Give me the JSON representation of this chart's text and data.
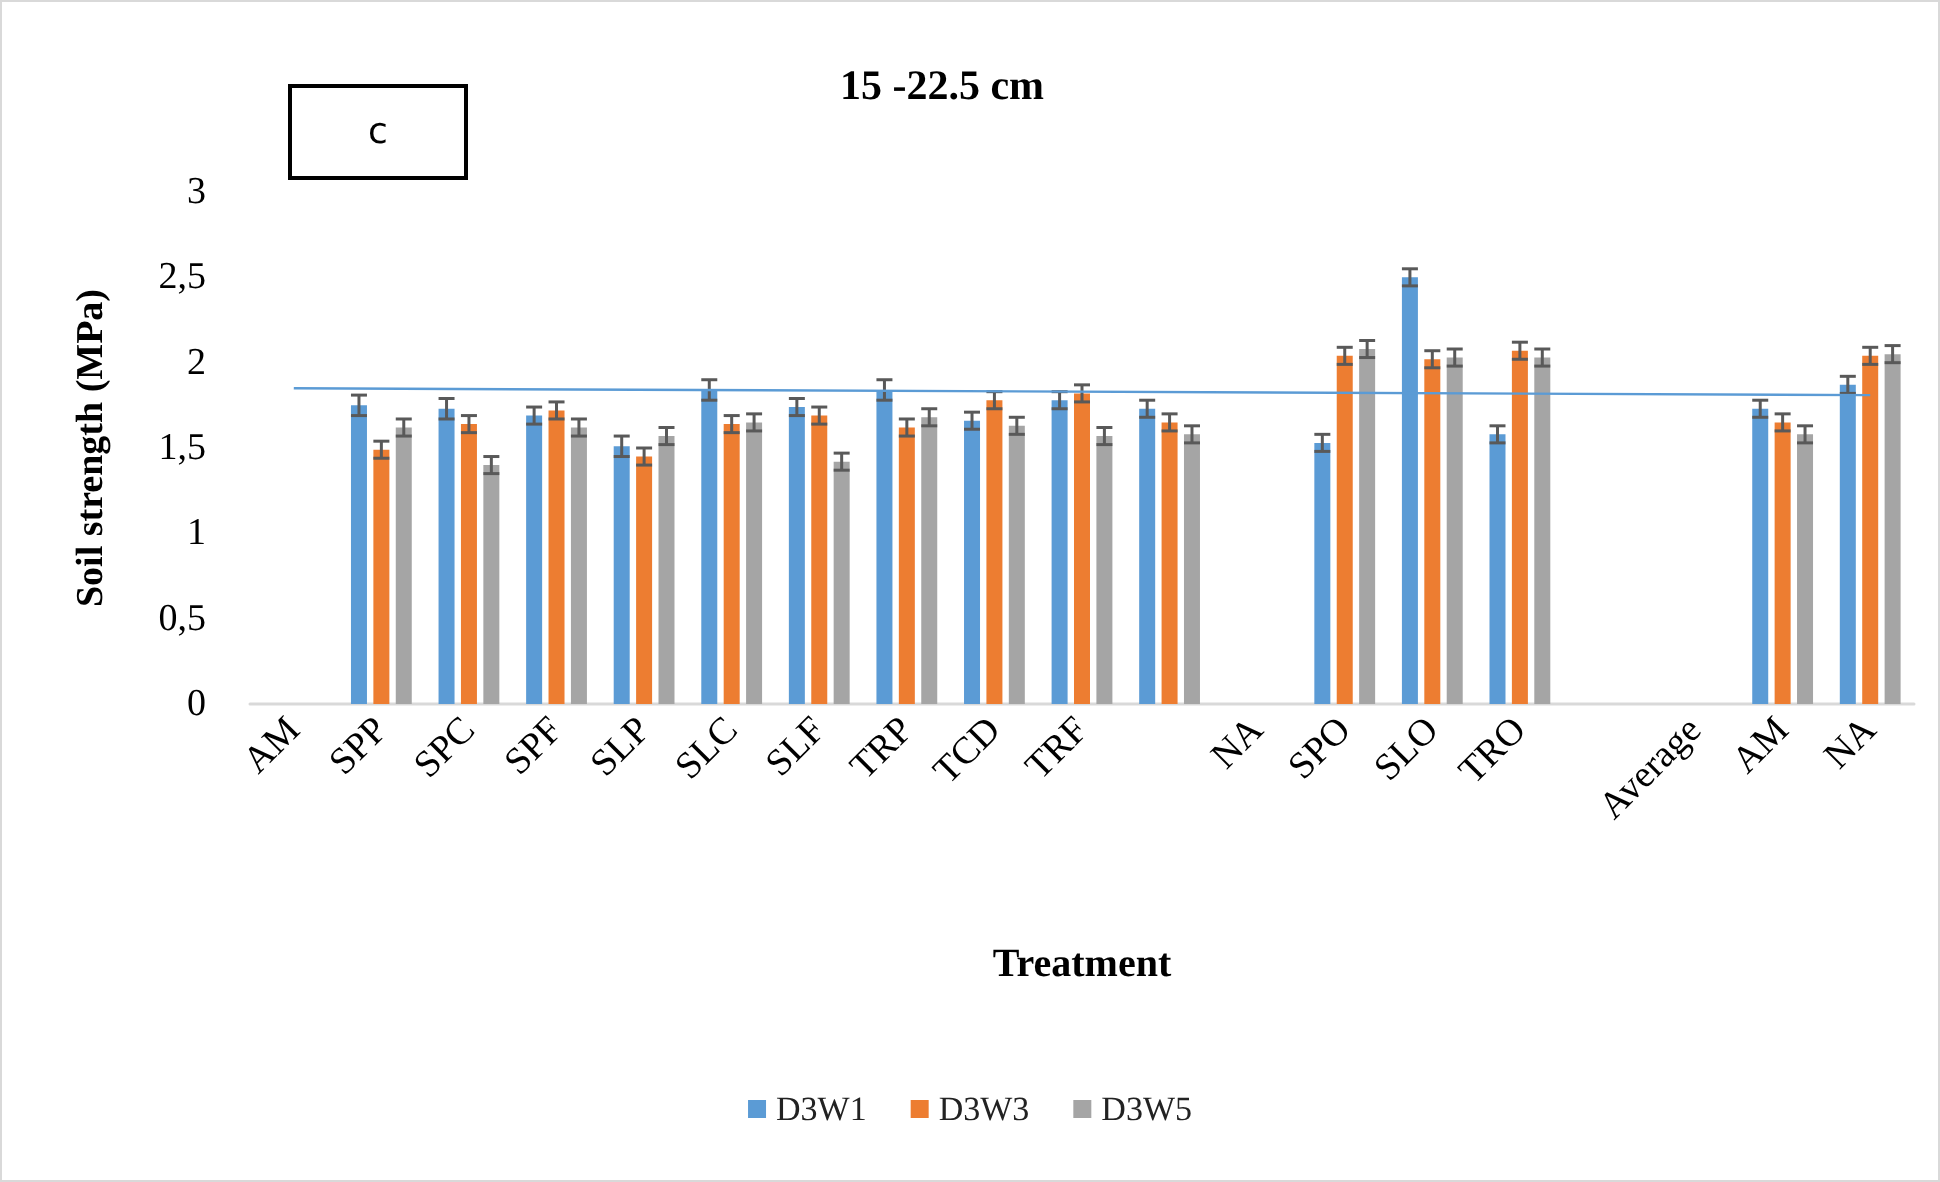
{
  "chart_data": {
    "type": "bar",
    "title": "15 -22.5 cm",
    "xlabel": "Treatment",
    "ylabel": "Soil strength (MPa)",
    "annotations": [
      "c"
    ],
    "categories": [
      "AM",
      "SPP",
      "SPC",
      "SPF",
      "SLP",
      "SLC",
      "SLF",
      "TRP",
      "TCD",
      "TRF",
      null,
      "NA",
      "SPO",
      "SLO",
      "TRO",
      null,
      "Average",
      "AM",
      "NA"
    ],
    "series": [
      {
        "name": "D3W1",
        "color": "#5b9bd5",
        "values": [
          null,
          1.75,
          1.73,
          1.69,
          1.51,
          1.84,
          1.74,
          1.84,
          1.66,
          1.78,
          1.73,
          null,
          1.53,
          2.5,
          1.58,
          null,
          null,
          1.73,
          1.87
        ],
        "errors": [
          null,
          0.06,
          0.06,
          0.05,
          0.06,
          0.06,
          0.05,
          0.06,
          0.05,
          0.05,
          0.05,
          null,
          0.05,
          0.05,
          0.05,
          null,
          null,
          0.05,
          0.05
        ]
      },
      {
        "name": "D3W3",
        "color": "#ed7d31",
        "values": [
          null,
          1.49,
          1.64,
          1.72,
          1.45,
          1.64,
          1.69,
          1.62,
          1.78,
          1.82,
          1.65,
          null,
          2.04,
          2.02,
          2.07,
          null,
          null,
          1.65,
          2.04
        ],
        "errors": [
          null,
          0.05,
          0.05,
          0.05,
          0.05,
          0.05,
          0.05,
          0.05,
          0.05,
          0.05,
          0.05,
          null,
          0.05,
          0.05,
          0.05,
          null,
          null,
          0.05,
          0.05
        ]
      },
      {
        "name": "D3W5",
        "color": "#a5a5a5",
        "values": [
          null,
          1.62,
          1.4,
          1.62,
          1.57,
          1.65,
          1.42,
          1.68,
          1.63,
          1.57,
          1.58,
          null,
          2.08,
          2.03,
          2.03,
          null,
          null,
          1.58,
          2.05
        ],
        "errors": [
          null,
          0.05,
          0.05,
          0.05,
          0.05,
          0.05,
          0.05,
          0.05,
          0.05,
          0.05,
          0.05,
          null,
          0.05,
          0.05,
          0.05,
          null,
          null,
          0.05,
          0.05
        ]
      },
      {
        "type": "line",
        "color": "#5b9bd5",
        "marker": "none",
        "values": [
          1.85,
          null,
          null,
          null,
          null,
          null,
          null,
          null,
          null,
          null,
          null,
          null,
          null,
          null,
          null,
          null,
          null,
          null,
          1.81
        ]
      }
    ],
    "ylim": [
      0,
      3
    ],
    "yticks": [
      0,
      {
        "value": 0.5,
        "label": "0,5"
      },
      1,
      {
        "value": 1.5,
        "label": "1,5"
      },
      2,
      {
        "value": 2.5,
        "label": "2,5"
      },
      3
    ],
    "grid": false,
    "legend": "bottom"
  }
}
